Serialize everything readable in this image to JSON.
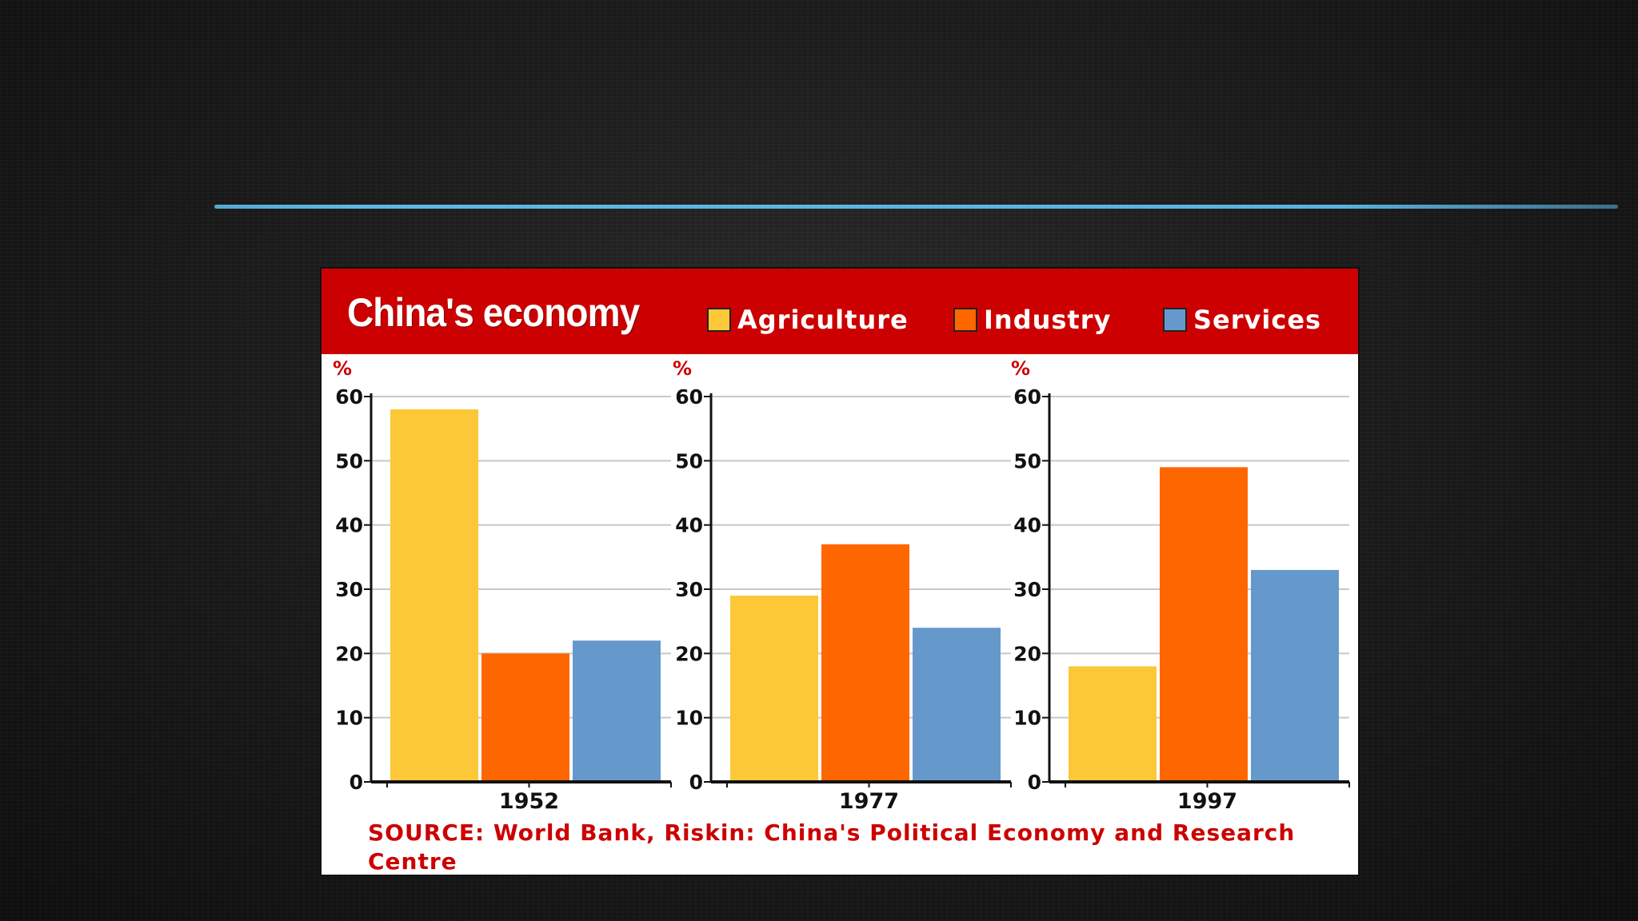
{
  "colors": {
    "agriculture": "#fcc838",
    "industry": "#fe6600",
    "services": "#6599cb",
    "header": "#cc0000",
    "gridline": "#c8c8c8"
  },
  "chart_data": {
    "type": "bar",
    "title": "China's economy",
    "ylabel": "%",
    "ylim": [
      0,
      60
    ],
    "yticks": [
      "0",
      "10",
      "20",
      "30",
      "40",
      "50",
      "60"
    ],
    "grid": true,
    "legend_placement": "top",
    "legend": [
      "Agriculture",
      "Industry",
      "Services"
    ],
    "panels": [
      {
        "category": "1952",
        "series": [
          {
            "name": "Agriculture",
            "value": 58
          },
          {
            "name": "Industry",
            "value": 20
          },
          {
            "name": "Services",
            "value": 22
          }
        ]
      },
      {
        "category": "1977",
        "series": [
          {
            "name": "Agriculture",
            "value": 29
          },
          {
            "name": "Industry",
            "value": 37
          },
          {
            "name": "Services",
            "value": 24
          }
        ]
      },
      {
        "category": "1997",
        "series": [
          {
            "name": "Agriculture",
            "value": 18
          },
          {
            "name": "Industry",
            "value": 49
          },
          {
            "name": "Services",
            "value": 33
          }
        ]
      }
    ],
    "source": "SOURCE: World Bank, Riskin: China's Political Economy and Research Centre"
  }
}
